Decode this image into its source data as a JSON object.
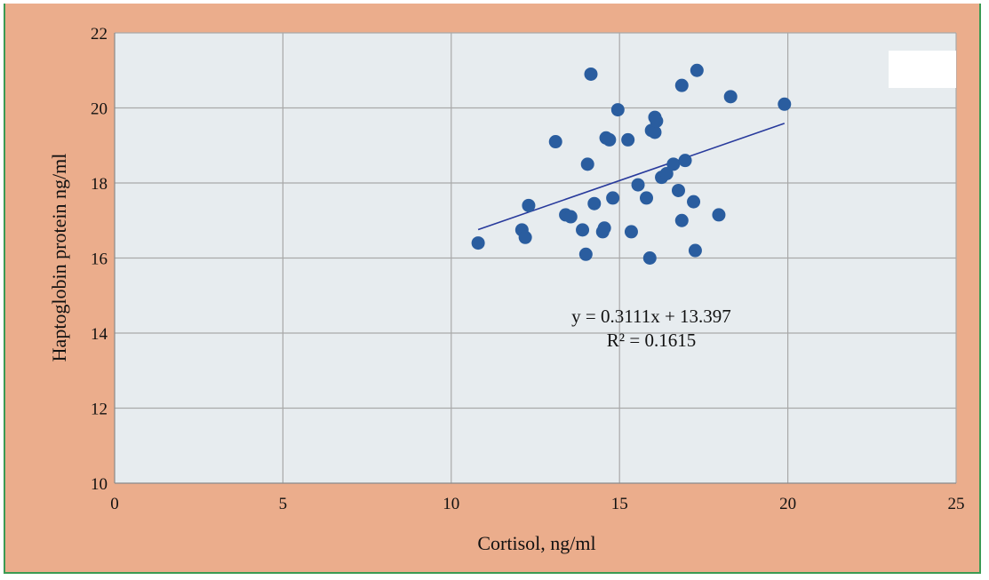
{
  "chart_data": {
    "type": "scatter",
    "title": "",
    "xlabel": "Cortisol, ng/ml",
    "ylabel": "Haptoglobin protein ng/ml",
    "xlim": [
      0,
      25
    ],
    "ylim": [
      10,
      22
    ],
    "x_ticks": [
      "0",
      "5",
      "10",
      "15",
      "20",
      "25"
    ],
    "y_ticks": [
      "10",
      "12",
      "14",
      "16",
      "18",
      "20",
      "22"
    ],
    "grid": true,
    "legend": "none",
    "colors": {
      "outer_background": "#ebad8c",
      "plot_background": "#e7ecef",
      "grid": "#a9a9a9",
      "marker": "#2a5d9f",
      "trendline": "#283a9c"
    },
    "series": [
      {
        "points": [
          [
            10.8,
            16.4
          ],
          [
            12.1,
            16.75
          ],
          [
            12.2,
            16.55
          ],
          [
            12.3,
            17.4
          ],
          [
            13.1,
            19.1
          ],
          [
            13.4,
            17.15
          ],
          [
            13.55,
            17.1
          ],
          [
            13.9,
            16.75
          ],
          [
            14.0,
            16.1
          ],
          [
            14.05,
            18.5
          ],
          [
            14.15,
            20.9
          ],
          [
            14.25,
            17.45
          ],
          [
            14.5,
            16.7
          ],
          [
            14.55,
            16.8
          ],
          [
            14.6,
            19.2
          ],
          [
            14.7,
            19.15
          ],
          [
            14.8,
            17.6
          ],
          [
            14.95,
            19.95
          ],
          [
            15.25,
            19.15
          ],
          [
            15.35,
            16.7
          ],
          [
            15.55,
            17.95
          ],
          [
            15.8,
            17.6
          ],
          [
            15.9,
            16.0
          ],
          [
            15.95,
            19.4
          ],
          [
            16.05,
            19.35
          ],
          [
            16.05,
            19.75
          ],
          [
            16.1,
            19.65
          ],
          [
            16.25,
            18.15
          ],
          [
            16.4,
            18.25
          ],
          [
            16.6,
            18.5
          ],
          [
            16.75,
            17.8
          ],
          [
            16.85,
            20.6
          ],
          [
            16.85,
            17.0
          ],
          [
            16.95,
            18.6
          ],
          [
            17.2,
            17.5
          ],
          [
            17.25,
            16.2
          ],
          [
            17.3,
            21.0
          ],
          [
            17.95,
            17.15
          ],
          [
            18.3,
            20.3
          ],
          [
            19.9,
            20.1
          ]
        ]
      }
    ],
    "trendline": {
      "slope": 0.3111,
      "intercept": 13.397,
      "x_range": [
        10.8,
        19.9
      ],
      "equation": "y = 0.3111x + 13.397",
      "r_squared": "R² = 0.1615"
    }
  }
}
